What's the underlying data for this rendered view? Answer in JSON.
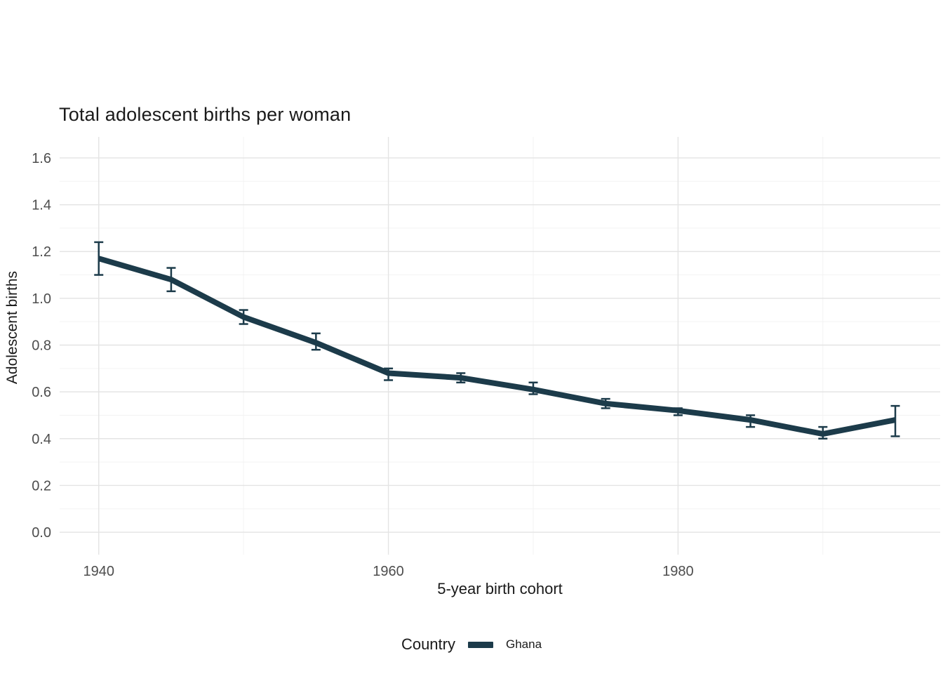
{
  "chart_data": {
    "type": "line",
    "title": "Total adolescent births per woman",
    "xlabel": "5-year birth cohort",
    "ylabel": "Adolescent births",
    "legend": {
      "title": "Country",
      "position": "bottom",
      "entries": [
        {
          "label": "Ghana",
          "color": "#1c3b4a"
        }
      ]
    },
    "x_tick_values": [
      1940,
      1960,
      1980
    ],
    "x_tick_labels": [
      "1940",
      "1960",
      "1980"
    ],
    "x_minor_values": [
      1950,
      1970,
      1990
    ],
    "y_tick_values": [
      0.0,
      0.2,
      0.4,
      0.6,
      0.8,
      1.0,
      1.2,
      1.4,
      1.6
    ],
    "y_tick_labels": [
      "0.0",
      "0.2",
      "0.4",
      "0.6",
      "0.8",
      "1.0",
      "1.2",
      "1.4",
      "1.6"
    ],
    "y_minor_values": [
      0.1,
      0.3,
      0.5,
      0.7,
      0.9,
      1.1,
      1.3,
      1.5
    ],
    "xlim": [
      1937.3,
      1998.1
    ],
    "ylim": [
      -0.096,
      1.69
    ],
    "grid": true,
    "series": [
      {
        "name": "Ghana",
        "color": "#1c3b4a",
        "x": [
          1940,
          1945,
          1950,
          1955,
          1960,
          1965,
          1970,
          1975,
          1980,
          1985,
          1990,
          1995
        ],
        "y": [
          1.17,
          1.08,
          0.92,
          0.81,
          0.68,
          0.66,
          0.61,
          0.55,
          0.52,
          0.48,
          0.42,
          0.48
        ],
        "ymin": [
          1.1,
          1.03,
          0.89,
          0.78,
          0.65,
          0.64,
          0.59,
          0.53,
          0.5,
          0.45,
          0.4,
          0.41
        ],
        "ymax": [
          1.24,
          1.13,
          0.95,
          0.85,
          0.7,
          0.68,
          0.64,
          0.57,
          0.53,
          0.5,
          0.45,
          0.54
        ]
      }
    ],
    "style": {
      "line_width": 8,
      "errorbar_width": 2.5,
      "errorbar_cap": 13,
      "grid_major_color": "#e4e4e4",
      "grid_minor_color": "#f3f3f3",
      "background": "#ffffff",
      "tick_label_color": "#4d4d4d",
      "text_color": "#1a1a1a"
    }
  }
}
